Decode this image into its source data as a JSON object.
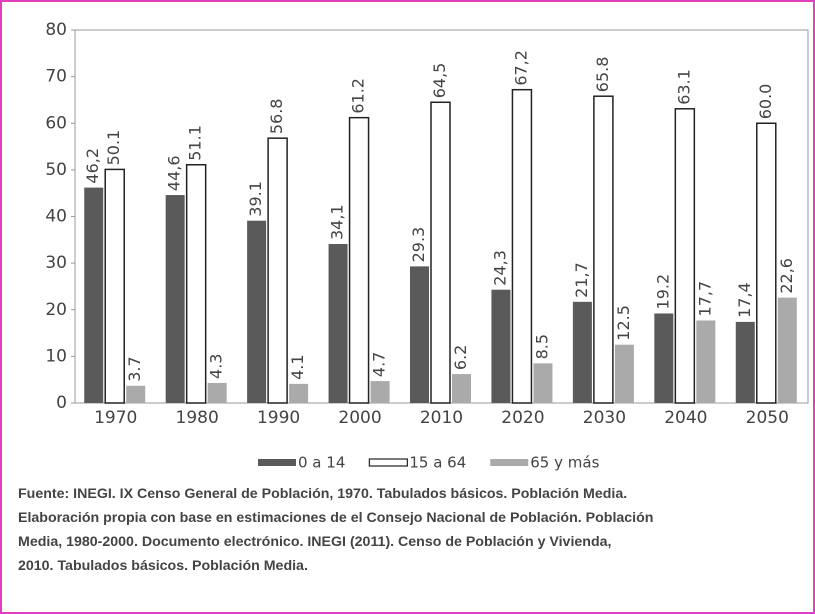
{
  "chart_data": {
    "type": "bar",
    "categories": [
      "1970",
      "1980",
      "1990",
      "2000",
      "2010",
      "2020",
      "2030",
      "2040",
      "2050"
    ],
    "series": [
      {
        "name": "0 a 14",
        "color": "#5a5a5a",
        "values": [
          46.2,
          44.6,
          39.1,
          34.1,
          29.3,
          24.3,
          21.7,
          19.2,
          17.4
        ],
        "value_labels": [
          "46,2",
          "44,6",
          "39.1",
          "34,1",
          "29.3",
          "24,3",
          "21,7",
          "19.2",
          "17,4"
        ]
      },
      {
        "name": "15 a 64",
        "color": "#ffffff",
        "values": [
          50.1,
          51.1,
          56.8,
          61.2,
          64.5,
          67.2,
          65.8,
          63.1,
          60.0
        ],
        "value_labels": [
          "50.1",
          "51.1",
          "56.8",
          "61.2",
          "64,5",
          "67,2",
          "65.8",
          "63.1",
          "60.0"
        ]
      },
      {
        "name": "65 y más",
        "color": "#aaaaaa",
        "values": [
          3.7,
          4.3,
          4.1,
          4.7,
          6.2,
          8.5,
          12.5,
          17.7,
          22.6
        ],
        "value_labels": [
          "3.7",
          "4.3",
          "4.1",
          "4.7",
          "6.2",
          "8.5",
          "12.5",
          "17,7",
          "22,6"
        ]
      }
    ],
    "ylim": [
      0,
      80
    ],
    "yticks": [
      0,
      10,
      20,
      30,
      40,
      50,
      60,
      70,
      80
    ],
    "grid": false,
    "legend": "bottom",
    "source": [
      "Fuente: INEGI. IX Censo General de Población, 1970. Tabulados básicos. Población Media.",
      "Elaboración propia con base en estimaciones de el Consejo Nacional de Población. Población",
      "Media, 1980-2000. Documento electrónico. INEGI (2011). Censo de Población y  Vivienda,",
      "2010. Tabulados básicos. Población Media."
    ]
  }
}
